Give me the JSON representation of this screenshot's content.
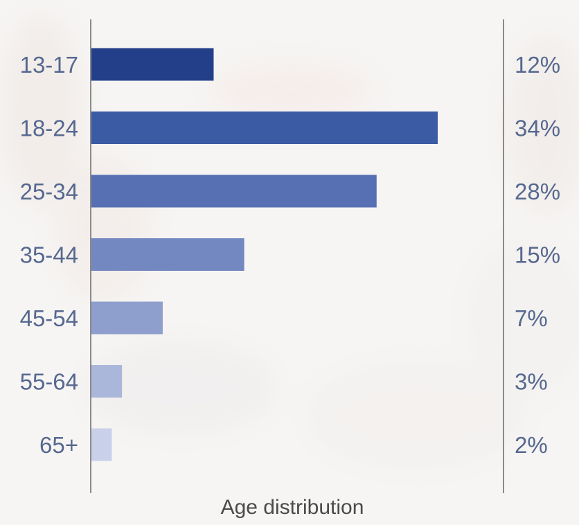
{
  "chart_data": {
    "type": "bar",
    "orientation": "horizontal",
    "title": "",
    "xlabel": "Age distribution",
    "ylabel": "",
    "categories": [
      "13-17",
      "18-24",
      "25-34",
      "35-44",
      "45-54",
      "55-64",
      "65+"
    ],
    "values": [
      12,
      34,
      28,
      15,
      7,
      3,
      2
    ],
    "value_labels": [
      "12%",
      "34%",
      "28%",
      "15%",
      "7%",
      "3%",
      "2%"
    ],
    "unit": "%",
    "xlim": [
      0,
      40
    ],
    "grid": false,
    "legend": "none",
    "bar_colors": [
      "#233f8a",
      "#3b5ba5",
      "#5670b3",
      "#7388c1",
      "#8e9ecd",
      "#aab6da",
      "#c9d0ea"
    ],
    "axis_color": "#8a8a8a"
  }
}
